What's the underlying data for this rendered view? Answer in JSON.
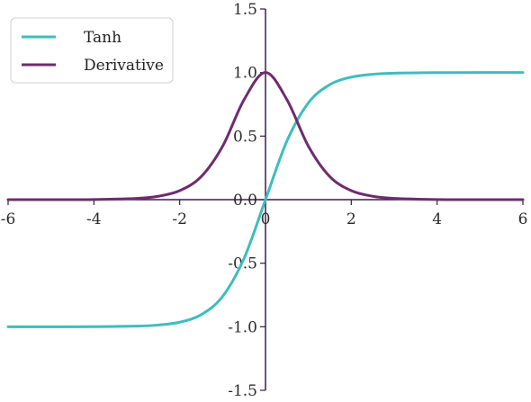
{
  "chart_data": {
    "type": "line",
    "title": "",
    "xlabel": "",
    "ylabel": "",
    "xlim": [
      -6,
      6
    ],
    "ylim": [
      -1.5,
      1.5
    ],
    "x_ticks": [
      -6,
      -4,
      -2,
      0,
      2,
      4,
      6
    ],
    "x_tick_labels": [
      "-6",
      "-4",
      "-2",
      "0",
      "2",
      "4",
      "6"
    ],
    "y_ticks": [
      -1.5,
      -1.0,
      -0.5,
      0.0,
      0.5,
      1.0,
      1.5
    ],
    "y_tick_labels": [
      "-1.5",
      "-1.0",
      "-0.5",
      "0.0",
      "0.5",
      "1.0",
      "1.5"
    ],
    "grid": false,
    "legend_position": "top-left",
    "series": [
      {
        "name": "Tanh",
        "color": "#3dbdbd",
        "x": [
          -6,
          -5,
          -4,
          -3,
          -2.5,
          -2,
          -1.5,
          -1,
          -0.5,
          0,
          0.5,
          1,
          1.5,
          2,
          2.5,
          3,
          4,
          5,
          6
        ],
        "y": [
          -1.0,
          -0.9999,
          -0.9993,
          -0.9951,
          -0.9866,
          -0.964,
          -0.9051,
          -0.7616,
          -0.4621,
          0.0,
          0.4621,
          0.7616,
          0.9051,
          0.964,
          0.9866,
          0.9951,
          0.9993,
          0.9999,
          1.0
        ]
      },
      {
        "name": "Derivative",
        "color": "#6e2c6e",
        "x": [
          -6,
          -5,
          -4,
          -3,
          -2.5,
          -2,
          -1.5,
          -1,
          -0.5,
          0,
          0.5,
          1,
          1.5,
          2,
          2.5,
          3,
          4,
          5,
          6
        ],
        "y": [
          0.0,
          0.0002,
          0.0013,
          0.0099,
          0.0266,
          0.0707,
          0.1807,
          0.42,
          0.7864,
          1.0,
          0.7864,
          0.42,
          0.1807,
          0.0707,
          0.0266,
          0.0099,
          0.0013,
          0.0002,
          0.0
        ]
      }
    ]
  }
}
